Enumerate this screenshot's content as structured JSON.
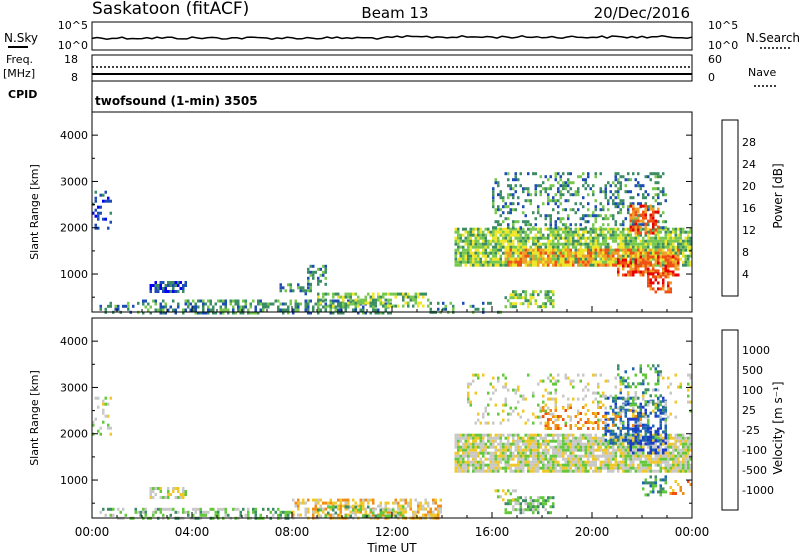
{
  "header": {
    "station": "Saskatoon (fitACF)",
    "beam": "Beam 13",
    "date": "20/Dec/2016"
  },
  "top_strip": {
    "nsky_label": "N.Sky",
    "nsearch_label": "N.Search",
    "left_ticks": [
      "10^5",
      "10^0"
    ],
    "right_ticks": [
      "10^5",
      "10^0"
    ],
    "freq_label": "Freq.",
    "freq_unit": "[MHz]",
    "freq_ticks": [
      "18",
      "8"
    ],
    "nave_label": "Nave",
    "nave_ticks": [
      "60",
      "0"
    ],
    "cpid_label": "CPID",
    "cpid_text": "twofsound (1-min) 3505"
  },
  "colors": {
    "power_scale": [
      "#0000ff",
      "#1c4cb4",
      "#3c8c64",
      "#78c850",
      "#f0e628",
      "#f0a028",
      "#f05014",
      "#e60000"
    ],
    "velocity_scale": [
      "#1c3cc8",
      "#1c64b4",
      "#3c8c64",
      "#64c83c",
      "#c8c8c8",
      "#f0c828",
      "#f08c14",
      "#f05014",
      "#e60000"
    ],
    "ground_scatter": "#c8c8c8"
  },
  "chart_data": [
    {
      "type": "heatmap",
      "panel": "power",
      "xlabel": "Time UT",
      "ylabel": "Slant Range [km]",
      "xlim": [
        0,
        24
      ],
      "ylim": [
        180,
        4500
      ],
      "x_tick_labels": [
        "00:00",
        "04:00",
        "08:00",
        "12:00",
        "16:00",
        "20:00",
        "00:00"
      ],
      "y_tick_labels": [
        "1000",
        "2000",
        "3000",
        "4000"
      ],
      "colorbar_label": "Power [dB]",
      "colorbar_ticks": [
        "28",
        "24",
        "20",
        "16",
        "12",
        "8",
        "4"
      ],
      "regions": [
        {
          "t": [
            0.3,
            2.0
          ],
          "r": [
            180,
            400
          ],
          "level": 2,
          "density": 0.35
        },
        {
          "t": [
            2.0,
            12.0
          ],
          "r": [
            180,
            450
          ],
          "level": 2,
          "density": 0.5
        },
        {
          "t": [
            9.0,
            13.5
          ],
          "r": [
            300,
            600
          ],
          "level": 3,
          "density": 0.55
        },
        {
          "t": [
            13.5,
            16.5
          ],
          "r": [
            180,
            400
          ],
          "level": 2,
          "density": 0.3
        },
        {
          "t": [
            2.3,
            3.8
          ],
          "r": [
            650,
            850
          ],
          "level": 1,
          "density": 0.55
        },
        {
          "t": [
            7.5,
            8.8
          ],
          "r": [
            550,
            800
          ],
          "level": 2,
          "density": 0.45
        },
        {
          "t": [
            8.6,
            9.4
          ],
          "r": [
            800,
            1200
          ],
          "level": 2,
          "density": 0.5
        },
        {
          "t": [
            0.0,
            0.8
          ],
          "r": [
            2000,
            2800
          ],
          "level": 1,
          "density": 0.3
        },
        {
          "t": [
            14.5,
            24.0
          ],
          "r": [
            1200,
            2000
          ],
          "level": 3,
          "density": 0.85
        },
        {
          "t": [
            16.5,
            23.5
          ],
          "r": [
            1200,
            1550
          ],
          "level": 5,
          "density": 0.7
        },
        {
          "t": [
            21.0,
            23.5
          ],
          "r": [
            1000,
            1400
          ],
          "level": 6,
          "density": 0.6
        },
        {
          "t": [
            16.5,
            18.5
          ],
          "r": [
            300,
            650
          ],
          "level": 3,
          "density": 0.6
        },
        {
          "t": [
            16.0,
            23.0
          ],
          "r": [
            2000,
            3200
          ],
          "level": 2,
          "density": 0.3
        },
        {
          "t": [
            21.5,
            22.7
          ],
          "r": [
            1900,
            2500
          ],
          "level": 6,
          "density": 0.55
        },
        {
          "t": [
            22.2,
            23.2
          ],
          "r": [
            600,
            1100
          ],
          "level": 6,
          "density": 0.55
        }
      ]
    },
    {
      "type": "heatmap",
      "panel": "velocity",
      "xlabel": "Time UT",
      "ylabel": "Slant Range [km]",
      "xlim": [
        0,
        24
      ],
      "ylim": [
        180,
        4500
      ],
      "x_tick_labels": [
        "00:00",
        "04:00",
        "08:00",
        "12:00",
        "16:00",
        "20:00",
        "00:00"
      ],
      "y_tick_labels": [
        "1000",
        "2000",
        "3000",
        "4000"
      ],
      "colorbar_label": "Velocity [m s⁻¹]",
      "colorbar_ticks": [
        "1000",
        "500",
        "100",
        "25",
        "-25",
        "-100",
        "-500",
        "-1000"
      ],
      "regions": [
        {
          "t": [
            0.3,
            8.0
          ],
          "r": [
            180,
            400
          ],
          "level": 3,
          "density": 0.5
        },
        {
          "t": [
            8.0,
            14.0
          ],
          "r": [
            180,
            600
          ],
          "level": 5,
          "density": 0.55
        },
        {
          "t": [
            9.0,
            12.5
          ],
          "r": [
            200,
            450
          ],
          "level": 3,
          "density": 0.35
        },
        {
          "t": [
            2.3,
            3.8
          ],
          "r": [
            650,
            850
          ],
          "level": 4,
          "density": 0.5
        },
        {
          "t": [
            0.0,
            0.8
          ],
          "r": [
            2000,
            2800
          ],
          "level": 4,
          "density": 0.25
        },
        {
          "t": [
            14.5,
            24.0
          ],
          "r": [
            1200,
            2000
          ],
          "level": 4,
          "density": 0.85
        },
        {
          "t": [
            16.5,
            18.5
          ],
          "r": [
            300,
            650
          ],
          "level": 3,
          "density": 0.6
        },
        {
          "t": [
            16.0,
            17.0
          ],
          "r": [
            600,
            800
          ],
          "level": 4,
          "density": 0.4
        },
        {
          "t": [
            18.0,
            22.0
          ],
          "r": [
            2100,
            2600
          ],
          "level": 6,
          "density": 0.3
        },
        {
          "t": [
            20.5,
            23.0
          ],
          "r": [
            1800,
            2800
          ],
          "level": 1,
          "density": 0.45
        },
        {
          "t": [
            21.5,
            23.0
          ],
          "r": [
            1600,
            2200
          ],
          "level": 0,
          "density": 0.35
        },
        {
          "t": [
            22.0,
            23.0
          ],
          "r": [
            700,
            1100
          ],
          "level": 2,
          "density": 0.5
        },
        {
          "t": [
            21.0,
            22.8
          ],
          "r": [
            2600,
            3500
          ],
          "level": 2,
          "density": 0.25
        },
        {
          "t": [
            15.0,
            24.0
          ],
          "r": [
            2200,
            3300
          ],
          "level": 4,
          "density": 0.15
        },
        {
          "t": [
            23.0,
            24.0
          ],
          "r": [
            700,
            1000
          ],
          "level": 6,
          "density": 0.3
        }
      ]
    }
  ]
}
